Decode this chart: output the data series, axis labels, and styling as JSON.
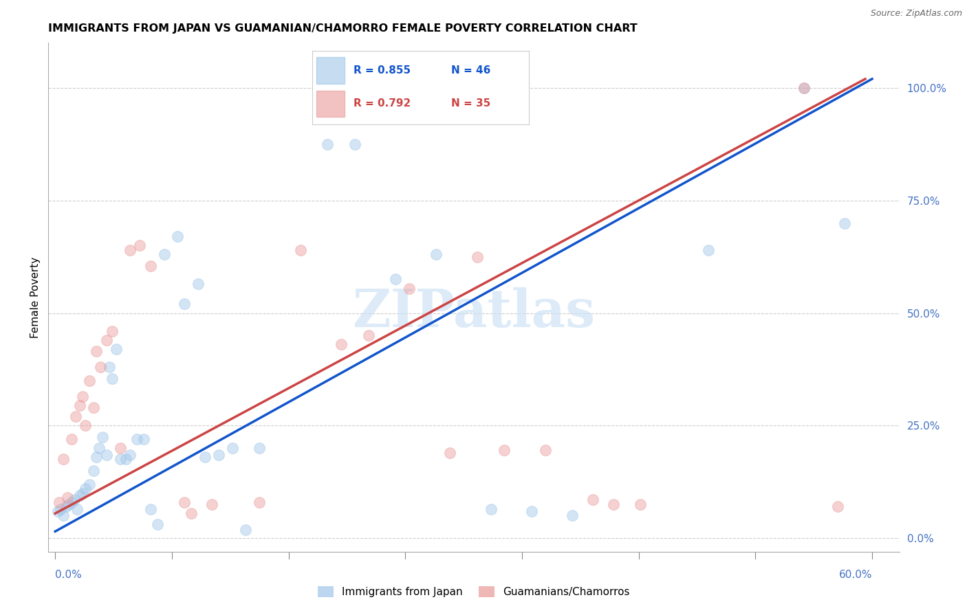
{
  "title": "IMMIGRANTS FROM JAPAN VS GUAMANIAN/CHAMORRO FEMALE POVERTY CORRELATION CHART",
  "source": "Source: ZipAtlas.com",
  "ylabel": "Female Poverty",
  "ytick_labels": [
    "0.0%",
    "25.0%",
    "50.0%",
    "75.0%",
    "100.0%"
  ],
  "ytick_values": [
    0.0,
    0.25,
    0.5,
    0.75,
    1.0
  ],
  "xlim": [
    -0.005,
    0.62
  ],
  "ylim": [
    -0.03,
    1.1
  ],
  "legend_r1": "R = 0.855",
  "legend_n1": "N = 46",
  "legend_r2": "R = 0.792",
  "legend_n2": "N = 35",
  "blue_color": "#9fc5e8",
  "pink_color": "#ea9999",
  "blue_line_color": "#1155cc",
  "pink_line_color": "#cc4444",
  "watermark": "ZIPatlas",
  "blue_scatter_x": [
    0.002,
    0.004,
    0.006,
    0.008,
    0.01,
    0.012,
    0.014,
    0.016,
    0.018,
    0.02,
    0.022,
    0.025,
    0.028,
    0.03,
    0.032,
    0.035,
    0.038,
    0.04,
    0.042,
    0.045,
    0.048,
    0.052,
    0.055,
    0.06,
    0.065,
    0.07,
    0.075,
    0.08,
    0.09,
    0.095,
    0.105,
    0.11,
    0.12,
    0.13,
    0.14,
    0.15,
    0.2,
    0.22,
    0.25,
    0.28,
    0.32,
    0.35,
    0.38,
    0.48,
    0.55,
    0.58
  ],
  "blue_scatter_y": [
    0.06,
    0.065,
    0.05,
    0.07,
    0.075,
    0.08,
    0.085,
    0.065,
    0.095,
    0.1,
    0.11,
    0.12,
    0.15,
    0.18,
    0.2,
    0.225,
    0.185,
    0.38,
    0.355,
    0.42,
    0.175,
    0.175,
    0.185,
    0.22,
    0.22,
    0.065,
    0.03,
    0.63,
    0.67,
    0.52,
    0.565,
    0.18,
    0.185,
    0.2,
    0.018,
    0.2,
    0.875,
    0.875,
    0.575,
    0.63,
    0.065,
    0.06,
    0.05,
    0.64,
    1.0,
    0.7
  ],
  "pink_scatter_x": [
    0.003,
    0.006,
    0.009,
    0.012,
    0.015,
    0.018,
    0.02,
    0.022,
    0.025,
    0.028,
    0.03,
    0.033,
    0.038,
    0.042,
    0.048,
    0.055,
    0.062,
    0.07,
    0.095,
    0.1,
    0.115,
    0.15,
    0.18,
    0.21,
    0.23,
    0.26,
    0.29,
    0.31,
    0.33,
    0.36,
    0.395,
    0.41,
    0.43,
    0.55,
    0.575
  ],
  "pink_scatter_y": [
    0.08,
    0.175,
    0.09,
    0.22,
    0.27,
    0.295,
    0.315,
    0.25,
    0.35,
    0.29,
    0.415,
    0.38,
    0.44,
    0.46,
    0.2,
    0.64,
    0.65,
    0.605,
    0.08,
    0.055,
    0.075,
    0.08,
    0.64,
    0.43,
    0.45,
    0.555,
    0.19,
    0.625,
    0.195,
    0.195,
    0.085,
    0.075,
    0.075,
    1.0,
    0.07
  ],
  "blue_line_x": [
    0.0,
    0.6
  ],
  "blue_line_y": [
    0.015,
    1.02
  ],
  "pink_line_x": [
    0.0,
    0.595
  ],
  "pink_line_y": [
    0.055,
    1.02
  ],
  "marker_size": 130,
  "marker_alpha": 0.45,
  "marker_linewidth": 0.8
}
